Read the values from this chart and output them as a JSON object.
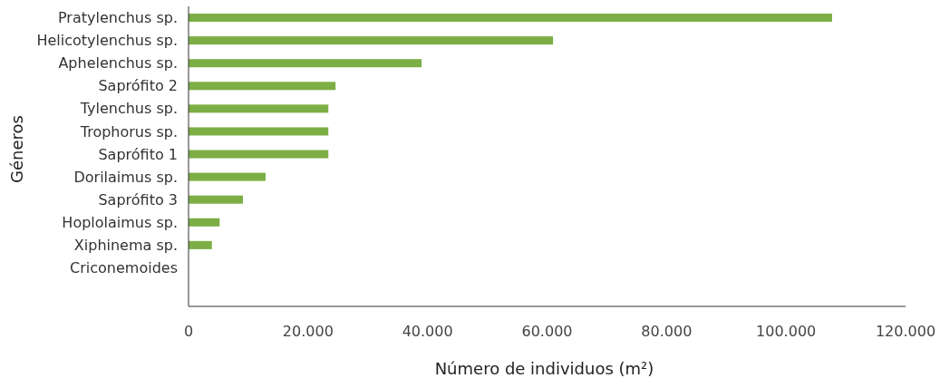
{
  "chart_data": {
    "type": "bar",
    "orientation": "horizontal",
    "ylabel": "Géneros",
    "xlabel": "Número de individuos (m²)",
    "categories": [
      "Pratylenchus sp.",
      "Helicotylenchus sp.",
      "Aphelenchus sp.",
      "Saprófito 2",
      "Tylenchus sp.",
      "Trophorus sp.",
      "Saprófito 1",
      "Dorilaimus sp.",
      "Saprófito 3",
      "Hoplolaimus sp.",
      "Xiphinema sp.",
      "Criconemoides"
    ],
    "values": [
      107700,
      61000,
      39000,
      24600,
      23400,
      23400,
      23400,
      12900,
      9100,
      5200,
      3900,
      0
    ],
    "color": "#7cae45",
    "xlim": [
      0,
      120000
    ],
    "xticks": [
      0,
      {
        "value": 20000,
        "label": "20.000"
      },
      {
        "value": 40000,
        "label": "40.000"
      },
      {
        "value": 60000,
        "label": "60.000"
      },
      {
        "value": 80000,
        "label": "80.000"
      },
      {
        "value": 100000,
        "label": "100.000"
      },
      {
        "value": 120000,
        "label": "120.000"
      }
    ],
    "grid": false
  }
}
